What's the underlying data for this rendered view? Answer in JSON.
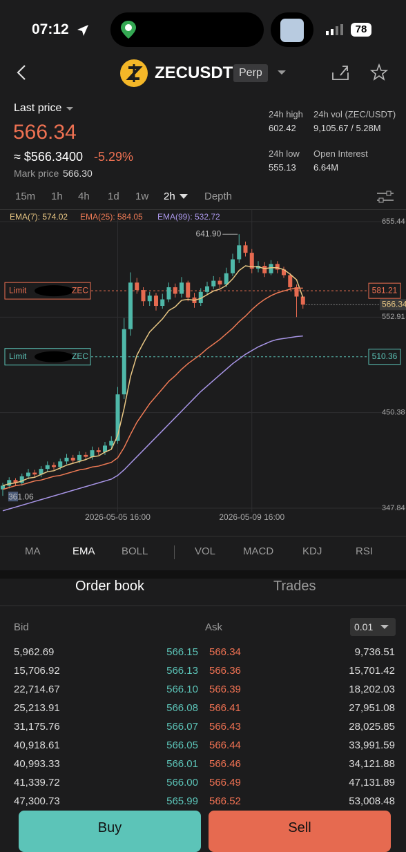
{
  "status_bar": {
    "time": "07:12",
    "battery": "78"
  },
  "header": {
    "symbol": "ZECUSDT",
    "tag": "Perp"
  },
  "ticker": {
    "last_price_label": "Last price",
    "last_price": "566.34",
    "usd_price": "≈ $566.3400",
    "change": "-5.29%",
    "mark_price_label": "Mark price",
    "mark_price": "566.30",
    "stats": [
      {
        "label": "24h high",
        "value": "602.42"
      },
      {
        "label": "24h vol (ZEC/USDT)",
        "value": "9,105.67 / 5.28M"
      },
      {
        "label": "24h low",
        "value": "555.13"
      },
      {
        "label": "Open Interest",
        "value": "6.64M"
      }
    ]
  },
  "timeframes": [
    "15m",
    "1h",
    "4h",
    "1d",
    "1w",
    "2h",
    "Depth"
  ],
  "chart_data": {
    "type": "candlestick",
    "open": [
      368,
      372,
      378,
      375,
      382,
      386,
      384,
      390,
      394,
      392,
      398,
      402,
      399,
      405,
      403,
      410,
      408,
      415,
      420,
      470,
      540,
      590,
      582,
      570,
      576,
      565,
      572,
      585,
      578,
      590,
      574,
      568,
      580,
      586,
      592,
      588,
      600,
      615,
      630,
      622,
      605,
      608,
      600,
      610,
      604,
      598,
      585,
      575
    ],
    "high": [
      375,
      381,
      380,
      385,
      390,
      389,
      393,
      398,
      397,
      401,
      406,
      405,
      409,
      408,
      414,
      413,
      419,
      425,
      478,
      552,
      601,
      595,
      585,
      580,
      579,
      578,
      590,
      589,
      596,
      592,
      579,
      584,
      591,
      597,
      596,
      606,
      621,
      641.9,
      634,
      626,
      613,
      612,
      614,
      613,
      607,
      600,
      588,
      575
    ],
    "low": [
      361.06,
      369,
      372,
      372,
      379,
      381,
      381,
      387,
      389,
      389,
      395,
      396,
      396,
      400,
      400,
      405,
      405,
      412,
      417,
      465,
      533,
      578,
      565,
      565,
      560,
      562,
      569,
      574,
      574,
      570,
      563,
      565,
      577,
      583,
      584,
      585,
      597,
      611,
      618,
      600,
      601,
      596,
      598,
      600,
      595,
      582,
      553,
      562
    ],
    "close": [
      372,
      378,
      375,
      382,
      386,
      384,
      390,
      394,
      392,
      398,
      402,
      399,
      405,
      403,
      410,
      408,
      415,
      420,
      470,
      540,
      590,
      582,
      570,
      576,
      565,
      572,
      585,
      578,
      590,
      574,
      568,
      580,
      586,
      592,
      588,
      600,
      615,
      630,
      622,
      605,
      608,
      600,
      610,
      604,
      598,
      585,
      575,
      566.34
    ],
    "up_color": "#4fb8a9",
    "down_color": "#e66a50",
    "series": [
      {
        "label": "EMA(7): 574.02",
        "color": "#e9c784",
        "values": [
          372,
          374,
          375,
          377,
          380,
          381,
          384,
          387,
          388,
          391,
          394,
          396,
          398,
          400,
          403,
          404,
          408,
          411,
          426,
          455,
          489,
          512,
          525,
          537,
          544,
          551,
          560,
          564,
          571,
          572,
          571,
          573,
          577,
          581,
          583,
          587,
          594,
          603,
          608,
          607,
          607,
          605,
          606,
          606,
          604,
          599,
          593,
          574.02
        ]
      },
      {
        "label": "EMA(25): 584.05",
        "color": "#ee7a55",
        "values": [
          368,
          370,
          372,
          373,
          375,
          377,
          378,
          380,
          382,
          383,
          385,
          387,
          389,
          390,
          392,
          393,
          395,
          397,
          402,
          413,
          427,
          440,
          450,
          460,
          468,
          476,
          484,
          490,
          497,
          503,
          508,
          513,
          519,
          524,
          529,
          535,
          541,
          548,
          554,
          561,
          567,
          572,
          576,
          579,
          581,
          583,
          584,
          584.05
        ]
      },
      {
        "label": "EMA(99): 532.72",
        "color": "#a996e8",
        "values": [
          345,
          347,
          349,
          351,
          353,
          355,
          357,
          359,
          361,
          363,
          365,
          367,
          369,
          371,
          373,
          375,
          377,
          379,
          383,
          389,
          396,
          403,
          410,
          417,
          424,
          431,
          438,
          445,
          452,
          459,
          466,
          473,
          479,
          485,
          491,
          497,
          503,
          508,
          513,
          517,
          521,
          524,
          527,
          529,
          530,
          531,
          532,
          532.72
        ]
      }
    ],
    "ylim": [
      347.84,
      655.44
    ],
    "yticks": [
      655.44,
      {
        "value": 552.91,
        "label": "552.91"
      },
      450.38,
      347.84
    ],
    "xticks": [
      {
        "value": 18,
        "label": "2026-05-05 16:00"
      },
      {
        "value": 39,
        "label": "2026-05-09 16:00"
      }
    ],
    "high_label": "641.90",
    "low_label": "361.06",
    "orders": [
      {
        "label": "Limit",
        "asset": "ZEC",
        "price": 581.21,
        "color": "#ee7152"
      },
      {
        "label": "Limit",
        "asset": "ZEC",
        "price": 510.36,
        "color": "#5cc4b8"
      }
    ],
    "last_price": 566.34,
    "grid": true
  },
  "indicators": [
    "MA",
    "EMA",
    "BOLL",
    "VOL",
    "MACD",
    "KDJ",
    "RSI"
  ],
  "tabs": [
    "Order book",
    "Trades"
  ],
  "order_book": {
    "bid_label": "Bid",
    "ask_label": "Ask",
    "precision": "0.01",
    "rows": [
      [
        "5,962.69",
        "566.15",
        "566.34",
        "9,736.51"
      ],
      [
        "15,706.92",
        "566.13",
        "566.36",
        "15,701.42"
      ],
      [
        "22,714.67",
        "566.10",
        "566.39",
        "18,202.03"
      ],
      [
        "25,213.91",
        "566.08",
        "566.41",
        "27,951.08"
      ],
      [
        "31,175.76",
        "566.07",
        "566.43",
        "28,025.85"
      ],
      [
        "40,918.61",
        "566.05",
        "566.44",
        "33,991.59"
      ],
      [
        "40,993.33",
        "566.01",
        "566.46",
        "34,121.88"
      ],
      [
        "41,339.72",
        "566.00",
        "566.49",
        "47,131.89"
      ],
      [
        "47,300.73",
        "565.99",
        "566.52",
        "53,008.48"
      ]
    ]
  },
  "buttons": [
    "Buy",
    "Sell"
  ]
}
